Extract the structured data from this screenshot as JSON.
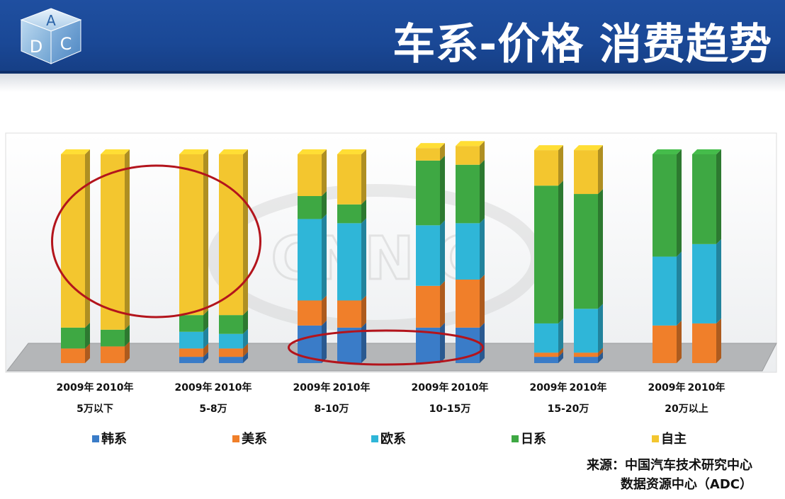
{
  "header": {
    "title": "车系-价格 消费趋势",
    "logo_letters": [
      "A",
      "D",
      "C"
    ]
  },
  "watermark": "CNNIC",
  "colors": {
    "header_bg": "#1a4896",
    "韩系": "#3a7cc8",
    "美系": "#f07f2a",
    "欧系": "#2fb6d8",
    "日系": "#3ea843",
    "自主": "#f3c62f",
    "highlight_ellipse": "#b3141c"
  },
  "chart_data": {
    "type": "bar",
    "stacked": true,
    "percent_stacked": true,
    "style": "3d",
    "groups": [
      {
        "label": "5万以下",
        "years": [
          "2009年",
          "2010年"
        ]
      },
      {
        "label": "5-8万",
        "years": [
          "2009年",
          "2010年"
        ]
      },
      {
        "label": "8-10万",
        "years": [
          "2009年",
          "2010年"
        ]
      },
      {
        "label": "10-15万",
        "years": [
          "2009年",
          "2010年"
        ]
      },
      {
        "label": "15-20万",
        "years": [
          "2009年",
          "2010年"
        ]
      },
      {
        "label": "20万以上",
        "years": [
          "2009年",
          "2010年"
        ]
      }
    ],
    "series": [
      {
        "name": "韩系",
        "values": [
          0,
          0,
          3,
          3,
          18,
          17,
          17,
          17,
          3,
          3,
          0,
          0
        ]
      },
      {
        "name": "美系",
        "values": [
          7,
          8,
          4,
          4,
          12,
          13,
          20,
          23,
          2,
          2,
          18,
          19
        ]
      },
      {
        "name": "欧系",
        "values": [
          0,
          0,
          8,
          7,
          39,
          37,
          29,
          27,
          14,
          21,
          33,
          38
        ]
      },
      {
        "name": "日系",
        "values": [
          10,
          8,
          8,
          9,
          11,
          9,
          31,
          28,
          66,
          55,
          49,
          43
        ]
      },
      {
        "name": "自主",
        "values": [
          83,
          84,
          77,
          77,
          20,
          24,
          6,
          9,
          17,
          21,
          0,
          0
        ]
      }
    ],
    "ylim": [
      0,
      100
    ],
    "legend_position": "bottom",
    "annotations": [
      "ellipse around 自主 bars of 5万以下 and 5-8万",
      "ellipse around 韩系 bars of 8-10万 and 10-15万"
    ]
  },
  "source": {
    "line1": "来源：中国汽车技术研究中心",
    "line2": "数据资源中心（ADC）"
  }
}
